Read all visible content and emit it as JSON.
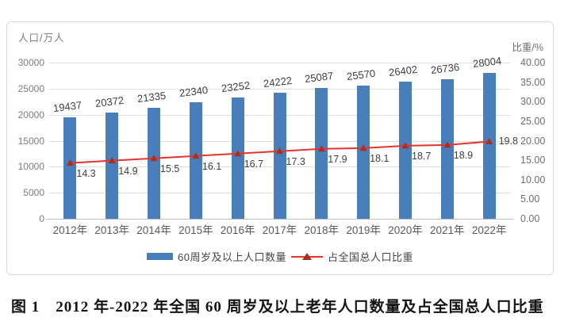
{
  "caption": "图 1　2012 年-2022 年全国 60 周岁及以上老年人口数量及占全国总人口比重",
  "colors": {
    "bar": "#4a7ebb",
    "line": "#e2352b",
    "marker": "#a8301f",
    "gridline": "#dedede",
    "axis_line": "#bfbfbf"
  },
  "chart_data": {
    "type": "bar",
    "subtype": "bar+line dual axis",
    "categories": [
      "2012年",
      "2013年",
      "2014年",
      "2015年",
      "2016年",
      "2017年",
      "2018年",
      "2019年",
      "2020年",
      "2021年",
      "2022年"
    ],
    "series": [
      {
        "name": "60周岁及以上人口数量",
        "type": "bar",
        "axis": "left",
        "values": [
          19437,
          20372,
          21335,
          22340,
          23252,
          24222,
          25087,
          25570,
          26402,
          26736,
          28004
        ]
      },
      {
        "name": "占全国总人口比重",
        "type": "line",
        "axis": "right",
        "values": [
          14.3,
          14.9,
          15.5,
          16.1,
          16.7,
          17.3,
          17.9,
          18.1,
          18.7,
          18.9,
          19.8
        ]
      }
    ],
    "left_axis": {
      "title": "人口/万人",
      "min": 0,
      "max": 30000,
      "step": 5000,
      "tick_labels": [
        "0",
        "5000",
        "10000",
        "15000",
        "20000",
        "25000",
        "30000"
      ]
    },
    "right_axis": {
      "title": "比重/%",
      "min": 0,
      "max": 40,
      "step": 5,
      "tick_labels": [
        "0.00",
        "5.00",
        "10.00",
        "15.00",
        "20.00",
        "25.00",
        "30.00",
        "35.00",
        "40.00"
      ]
    },
    "grid": true,
    "legend_position": "bottom",
    "data_labels": true
  }
}
